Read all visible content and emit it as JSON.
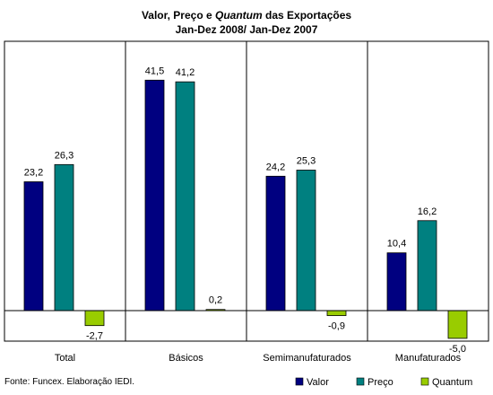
{
  "chart_data": {
    "type": "bar",
    "title": {
      "part1": "Valor, Preço e ",
      "part2_italic": "Quantum",
      "part3": " das Exportações",
      "line2": "Jan-Dez 2008/ Jan-Dez 2007"
    },
    "categories": [
      "Total",
      "Básicos",
      "Semimanufaturados",
      "Manufaturados"
    ],
    "series": [
      {
        "name": "Valor",
        "color": "#000080",
        "values": [
          23.2,
          41.5,
          24.2,
          10.4
        ],
        "labels": [
          "23,2",
          "41,5",
          "24,2",
          "10,4"
        ]
      },
      {
        "name": "Preço",
        "color": "#008080",
        "values": [
          26.3,
          41.2,
          25.3,
          16.2
        ],
        "labels": [
          "26,3",
          "41,2",
          "25,3",
          "16,2"
        ]
      },
      {
        "name": "Quantum",
        "color": "#99cc00",
        "values": [
          -2.7,
          0.2,
          -0.9,
          -5.0
        ],
        "labels": [
          "-2,7",
          "0,2",
          "-0,9",
          "-5,0"
        ]
      }
    ],
    "ylim": [
      -5.5,
      48.5
    ],
    "grid": false,
    "legend_position": "bottom-right",
    "source_note": "Fonte: Funcex. Elaboração IEDI."
  }
}
